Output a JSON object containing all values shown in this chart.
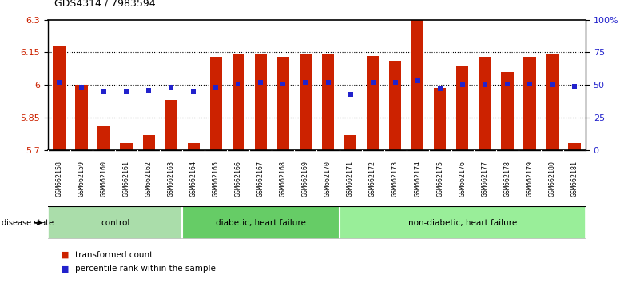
{
  "title": "GDS4314 / 7983594",
  "samples": [
    "GSM662158",
    "GSM662159",
    "GSM662160",
    "GSM662161",
    "GSM662162",
    "GSM662163",
    "GSM662164",
    "GSM662165",
    "GSM662166",
    "GSM662167",
    "GSM662168",
    "GSM662169",
    "GSM662170",
    "GSM662171",
    "GSM662172",
    "GSM662173",
    "GSM662174",
    "GSM662175",
    "GSM662176",
    "GSM662177",
    "GSM662178",
    "GSM662179",
    "GSM662180",
    "GSM662181"
  ],
  "bar_values": [
    6.18,
    6.0,
    5.81,
    5.73,
    5.77,
    5.93,
    5.73,
    6.128,
    6.145,
    6.145,
    6.13,
    6.14,
    6.14,
    5.77,
    6.135,
    6.11,
    6.3,
    5.985,
    6.09,
    6.128,
    6.06,
    6.128,
    6.14,
    5.73
  ],
  "percentile_values": [
    52,
    48,
    45,
    45,
    46,
    48,
    45,
    48,
    51,
    52,
    51,
    52,
    52,
    43,
    52,
    52,
    53,
    47,
    50,
    50,
    51,
    51,
    50,
    49
  ],
  "bar_color": "#cc2200",
  "dot_color": "#2222cc",
  "ylim_left": [
    5.7,
    6.3
  ],
  "ylim_right": [
    0,
    100
  ],
  "yticks_left": [
    5.7,
    5.85,
    6.0,
    6.15,
    6.3
  ],
  "ytick_labels_left": [
    "5.7",
    "5.85",
    "6",
    "6.15",
    "6.3"
  ],
  "yticks_right": [
    0,
    25,
    50,
    75,
    100
  ],
  "ytick_labels_right": [
    "0",
    "25",
    "50",
    "75",
    "100%"
  ],
  "hlines": [
    5.85,
    6.0,
    6.15
  ],
  "groups": [
    {
      "label": "control",
      "start": 0,
      "end": 5,
      "color": "#aaddaa"
    },
    {
      "label": "diabetic, heart failure",
      "start": 6,
      "end": 12,
      "color": "#66cc66"
    },
    {
      "label": "non-diabetic, heart failure",
      "start": 13,
      "end": 23,
      "color": "#99ee99"
    }
  ],
  "legend_items": [
    {
      "label": "transformed count",
      "color": "#cc2200"
    },
    {
      "label": "percentile rank within the sample",
      "color": "#2222cc"
    }
  ],
  "disease_state_label": "disease state",
  "background_color": "#ffffff",
  "plot_bg_color": "#ffffff",
  "tick_label_bg": "#bbbbbb"
}
